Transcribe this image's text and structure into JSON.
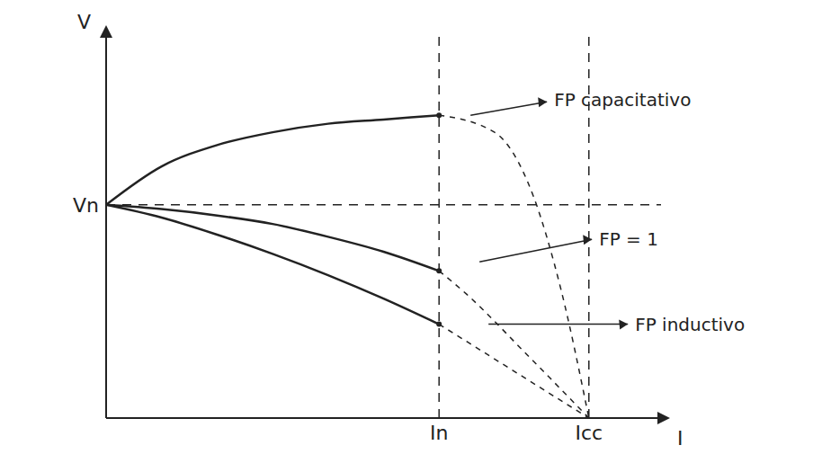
{
  "chart_data": {
    "type": "line",
    "x_label": "I",
    "y_label": "V",
    "xlim": [
      0,
      10
    ],
    "ylim": [
      0,
      9
    ],
    "xticks": [
      {
        "value": 6,
        "label": "In"
      },
      {
        "value": 8.7,
        "label": "Icc"
      }
    ],
    "yticks": [
      {
        "value": 5,
        "label": "Vn"
      }
    ],
    "grid": true,
    "series": [
      {
        "name": "FP capacitativo",
        "color": "#222222",
        "line_style": "solid",
        "marker": "none",
        "x": [
          0,
          1,
          2,
          3,
          4,
          5,
          6
        ],
        "values": [
          5,
          5.9,
          6.4,
          6.7,
          6.9,
          7.0,
          7.1
        ]
      },
      {
        "name": "FP capacitativo",
        "color": "#222222",
        "line_style": "dashed",
        "marker": "none",
        "x": [
          6,
          7,
          7.7,
          8.2,
          8.7
        ],
        "values": [
          7.1,
          6.7,
          5.2,
          3,
          0
        ]
      },
      {
        "name": "FP = 1",
        "color": "#222222",
        "line_style": "solid",
        "marker": "none",
        "x": [
          0,
          1,
          2,
          3,
          4,
          5,
          6
        ],
        "values": [
          5,
          4.9,
          4.75,
          4.55,
          4.25,
          3.9,
          3.45
        ]
      },
      {
        "name": "FP = 1",
        "color": "#222222",
        "line_style": "dashed",
        "marker": "none",
        "x": [
          6,
          6.5,
          7.5,
          8.7
        ],
        "values": [
          3.45,
          2.9,
          1.6,
          0
        ]
      },
      {
        "name": "FP inductivo",
        "color": "#222222",
        "line_style": "solid",
        "marker": "none",
        "x": [
          0,
          1,
          2,
          3,
          4,
          5,
          6
        ],
        "values": [
          5,
          4.7,
          4.3,
          3.85,
          3.35,
          2.8,
          2.2
        ]
      },
      {
        "name": "FP inductivo",
        "color": "#222222",
        "line_style": "dashed",
        "marker": "none",
        "x": [
          6,
          8.7
        ],
        "values": [
          2.2,
          0
        ]
      }
    ]
  }
}
